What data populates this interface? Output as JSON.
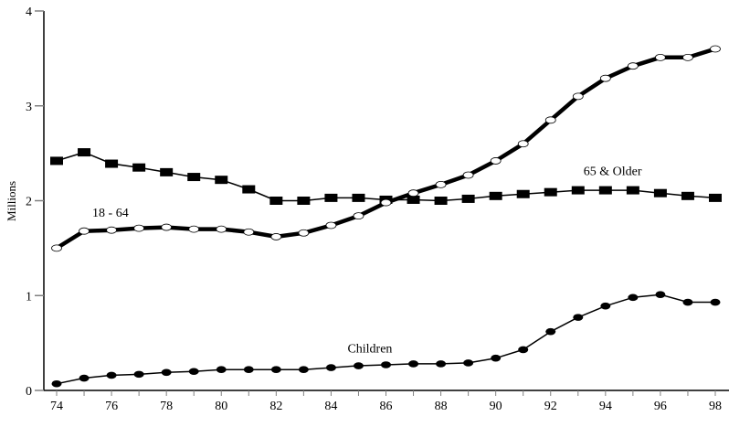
{
  "chart_data": {
    "type": "line",
    "title": "",
    "xlabel": "",
    "ylabel": "Millions",
    "ylim": [
      0,
      4
    ],
    "xlim": [
      74,
      98
    ],
    "grid": false,
    "legend": "none (inline series labels)",
    "x": [
      74,
      75,
      76,
      77,
      78,
      79,
      80,
      81,
      82,
      83,
      84,
      85,
      86,
      87,
      88,
      89,
      90,
      91,
      92,
      93,
      94,
      95,
      96,
      97,
      98
    ],
    "x_tick_labels": [
      "74",
      "76",
      "78",
      "80",
      "82",
      "84",
      "86",
      "88",
      "90",
      "92",
      "94",
      "96",
      "98"
    ],
    "y_tick_labels": [
      "0",
      "1",
      "2",
      "3",
      "4"
    ],
    "series": [
      {
        "name": "65 & Older",
        "marker": "filled-square",
        "line": "thin",
        "label_pos": {
          "x": 93.2,
          "y": 2.27
        },
        "values": [
          2.42,
          2.51,
          2.39,
          2.35,
          2.3,
          2.25,
          2.22,
          2.12,
          2.0,
          2.0,
          2.03,
          2.03,
          2.01,
          2.01,
          2.0,
          2.02,
          2.05,
          2.07,
          2.09,
          2.11,
          2.11,
          2.11,
          2.08,
          2.05,
          2.03
        ]
      },
      {
        "name": "18 - 64",
        "marker": "open-circle",
        "line": "thick",
        "label_pos": {
          "x": 75.3,
          "y": 1.83
        },
        "values": [
          1.5,
          1.68,
          1.69,
          1.71,
          1.72,
          1.7,
          1.7,
          1.67,
          1.62,
          1.66,
          1.74,
          1.84,
          1.98,
          2.08,
          2.17,
          2.27,
          2.42,
          2.6,
          2.85,
          3.1,
          3.29,
          3.42,
          3.51,
          3.51,
          3.6
        ]
      },
      {
        "name": "Children",
        "marker": "filled-circle",
        "line": "thin",
        "label_pos": {
          "x": 84.6,
          "y": 0.4
        },
        "values": [
          0.07,
          0.13,
          0.16,
          0.17,
          0.19,
          0.2,
          0.22,
          0.22,
          0.22,
          0.22,
          0.24,
          0.26,
          0.27,
          0.28,
          0.28,
          0.29,
          0.34,
          0.43,
          0.62,
          0.77,
          0.89,
          0.98,
          1.01,
          0.93,
          0.93
        ]
      }
    ]
  },
  "colors": {
    "line": "#000000",
    "tick": "#808080",
    "marker_fill_open": "#ffffff",
    "background": "#ffffff"
  }
}
